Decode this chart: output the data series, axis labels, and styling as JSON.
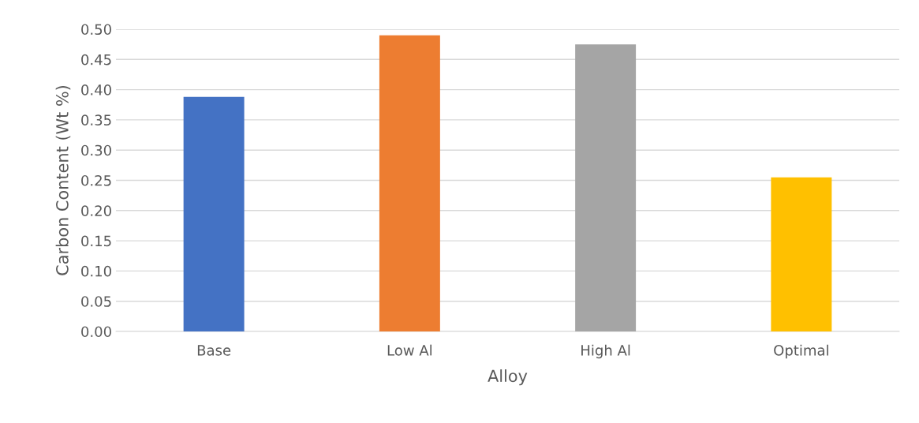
{
  "chart_data": {
    "type": "bar",
    "xlabel": "Alloy",
    "ylabel": "Carbon Content (Wt %)",
    "categories": [
      "Base",
      "Low Al",
      "High Al",
      "Optimal"
    ],
    "values": [
      0.388,
      0.49,
      0.475,
      0.255
    ],
    "colors": [
      "#4472c4",
      "#ed7d31",
      "#a5a5a5",
      "#ffc000"
    ],
    "ylim": [
      0,
      0.5
    ],
    "yticks": [
      {
        "value": 0,
        "label": "0.00"
      },
      {
        "value": 0.05,
        "label": "0.05"
      },
      {
        "value": 0.1,
        "label": "0.10"
      },
      {
        "value": 0.15,
        "label": "0.15"
      },
      {
        "value": 0.2,
        "label": "0.20"
      },
      {
        "value": 0.25,
        "label": "0.25"
      },
      {
        "value": 0.3,
        "label": "0.30"
      },
      {
        "value": 0.35,
        "label": "0.35"
      },
      {
        "value": 0.4,
        "label": "0.40"
      },
      {
        "value": 0.45,
        "label": "0.45"
      },
      {
        "value": 0.5,
        "label": "0.50"
      }
    ],
    "grid": "y",
    "legend": false
  }
}
